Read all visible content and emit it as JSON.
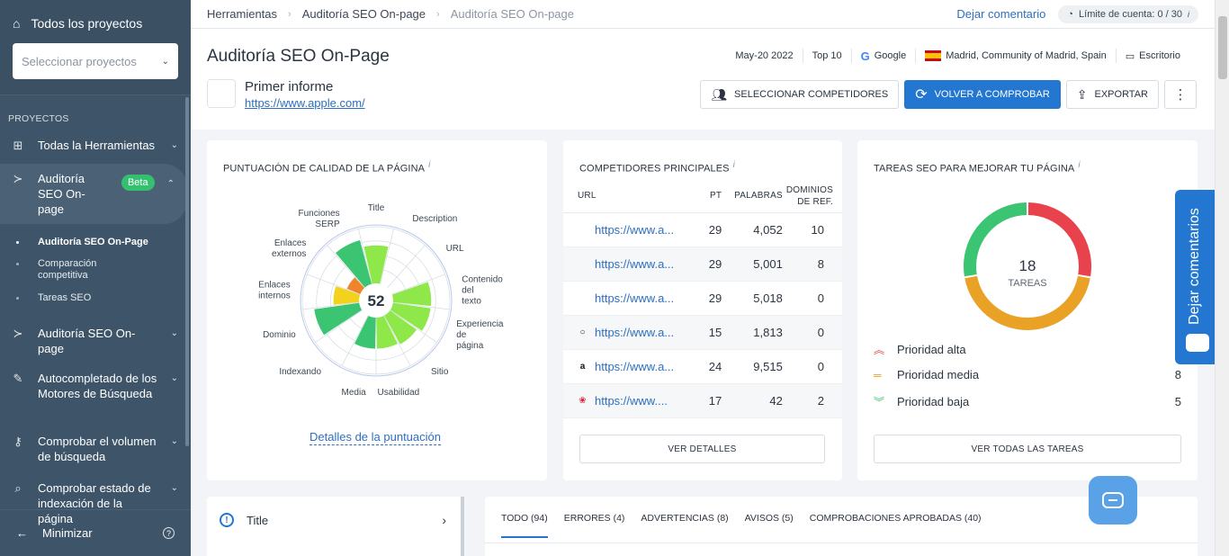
{
  "sidebar": {
    "all_projects": "Todos los proyectos",
    "select_placeholder": "Seleccionar proyectos",
    "section": "PROYECTOS",
    "items": [
      {
        "label": "Todas la Herramientas"
      },
      {
        "label": "Auditoría SEO On-page",
        "badge": "Beta"
      },
      {
        "label": "Auditoría SEO On-page"
      },
      {
        "label": "Autocompletado de los Motores de Búsqueda"
      },
      {
        "label": "Comprobar el volumen de búsqueda"
      },
      {
        "label": "Comprobar estado de indexación de la página"
      }
    ],
    "subitems": [
      "Auditoría SEO On-Page",
      "Comparación competitiva",
      "Tareas SEO"
    ],
    "minimize": "Minimizar"
  },
  "topbar": {
    "breadcrumbs": [
      "Herramientas",
      "Auditoría SEO On-page",
      "Auditoría SEO On-page"
    ],
    "comment_link": "Dejar comentario",
    "limit": "Límite de cuenta: 0 / 30"
  },
  "header": {
    "title": "Auditoría SEO On-Page",
    "date": "May-20 2022",
    "top": "Top 10",
    "engine": "Google",
    "location": "Madrid, Community of Madrid, Spain",
    "device": "Escritorio",
    "report_name": "Primer informe",
    "report_url": "https://www.apple.com/",
    "btn_competitors": "SELECCIONAR COMPETIDORES",
    "btn_recheck": "VOLVER A COMPROBAR",
    "btn_export": "EXPORTAR"
  },
  "quality": {
    "title": "PUNTUACIÓN DE CALIDAD DE LA PÁGINA",
    "score": "52",
    "link": "Detalles de la puntuación",
    "segments": [
      {
        "label": "Title",
        "level": 0.67,
        "color": "#8ee84a"
      },
      {
        "label": "Description",
        "level": 0.0,
        "color": "#8ee84a"
      },
      {
        "label": "URL",
        "level": 0.0,
        "color": "#8ee84a"
      },
      {
        "label": "Contenido del texto",
        "level": 0.67,
        "color": "#8ee84a"
      },
      {
        "label": "Experiencia de página",
        "level": 0.67,
        "color": "#8ee84a"
      },
      {
        "label": "Sitio",
        "level": 0.58,
        "color": "#8ee84a"
      },
      {
        "label": "Usabilidad",
        "level": 0.55,
        "color": "#8ee84a"
      },
      {
        "label": "Media",
        "level": 0.55,
        "color": "#3bc471"
      },
      {
        "label": "Indexando",
        "level": 0.0,
        "color": "#3bc471"
      },
      {
        "label": "Dominio",
        "level": 0.8,
        "color": "#3bc471"
      },
      {
        "label": "Enlaces internos",
        "level": 0.45,
        "color": "#f2d21b"
      },
      {
        "label": "Enlaces externos",
        "level": 0.25,
        "color": "#f0842a"
      },
      {
        "label": "Funciones SERP",
        "level": 0.8,
        "color": "#3bc471"
      }
    ]
  },
  "competitors": {
    "title": "COMPETIDORES PRINCIPALES",
    "headers": [
      "URL",
      "PT",
      "PALABRAS",
      "DOMINIOS DE REF."
    ],
    "rows": [
      {
        "icon": "apple-icon",
        "url": "https://www.a...",
        "pt": "29",
        "words": "4,052",
        "domains": "10"
      },
      {
        "icon": "apple-icon",
        "url": "https://www.a...",
        "pt": "29",
        "words": "5,001",
        "domains": "8"
      },
      {
        "icon": "apple-icon",
        "url": "https://www.a...",
        "pt": "29",
        "words": "5,018",
        "domains": "0"
      },
      {
        "icon": "apple-outline-icon",
        "url": "https://www.a...",
        "pt": "15",
        "words": "1,813",
        "domains": "0"
      },
      {
        "icon": "amazon-icon",
        "url": "https://www.a...",
        "pt": "24",
        "words": "9,515",
        "domains": "0"
      },
      {
        "icon": "red-flower-icon",
        "url": "https://www....",
        "pt": "17",
        "words": "42",
        "domains": "2"
      }
    ],
    "btn": "VER DETALLES"
  },
  "tasks": {
    "title": "TAREAS SEO PARA MEJORAR TU PÁGINA",
    "total": "18",
    "total_label": "TAREAS",
    "priorities": [
      {
        "label": "Prioridad alta",
        "value": "",
        "color": "#e8434d"
      },
      {
        "label": "Prioridad media",
        "value": "8",
        "color": "#e9a226"
      },
      {
        "label": "Prioridad baja",
        "value": "5",
        "color": "#3bc471"
      }
    ],
    "donut": [
      {
        "value": 5,
        "color": "#e8434d"
      },
      {
        "value": 8,
        "color": "#e9a226"
      },
      {
        "value": 5,
        "color": "#3bc471"
      }
    ],
    "btn": "VER TODAS LAS TAREAS"
  },
  "bottom": {
    "left_item": "Title",
    "tabs": [
      "TODO (94)",
      "ERRORES (4)",
      "ADVERTENCIAS (8)",
      "AVISOS (5)",
      "COMPROBACIONES APROBADAS (40)"
    ]
  },
  "feedback_tab": "Dejar comentarios"
}
